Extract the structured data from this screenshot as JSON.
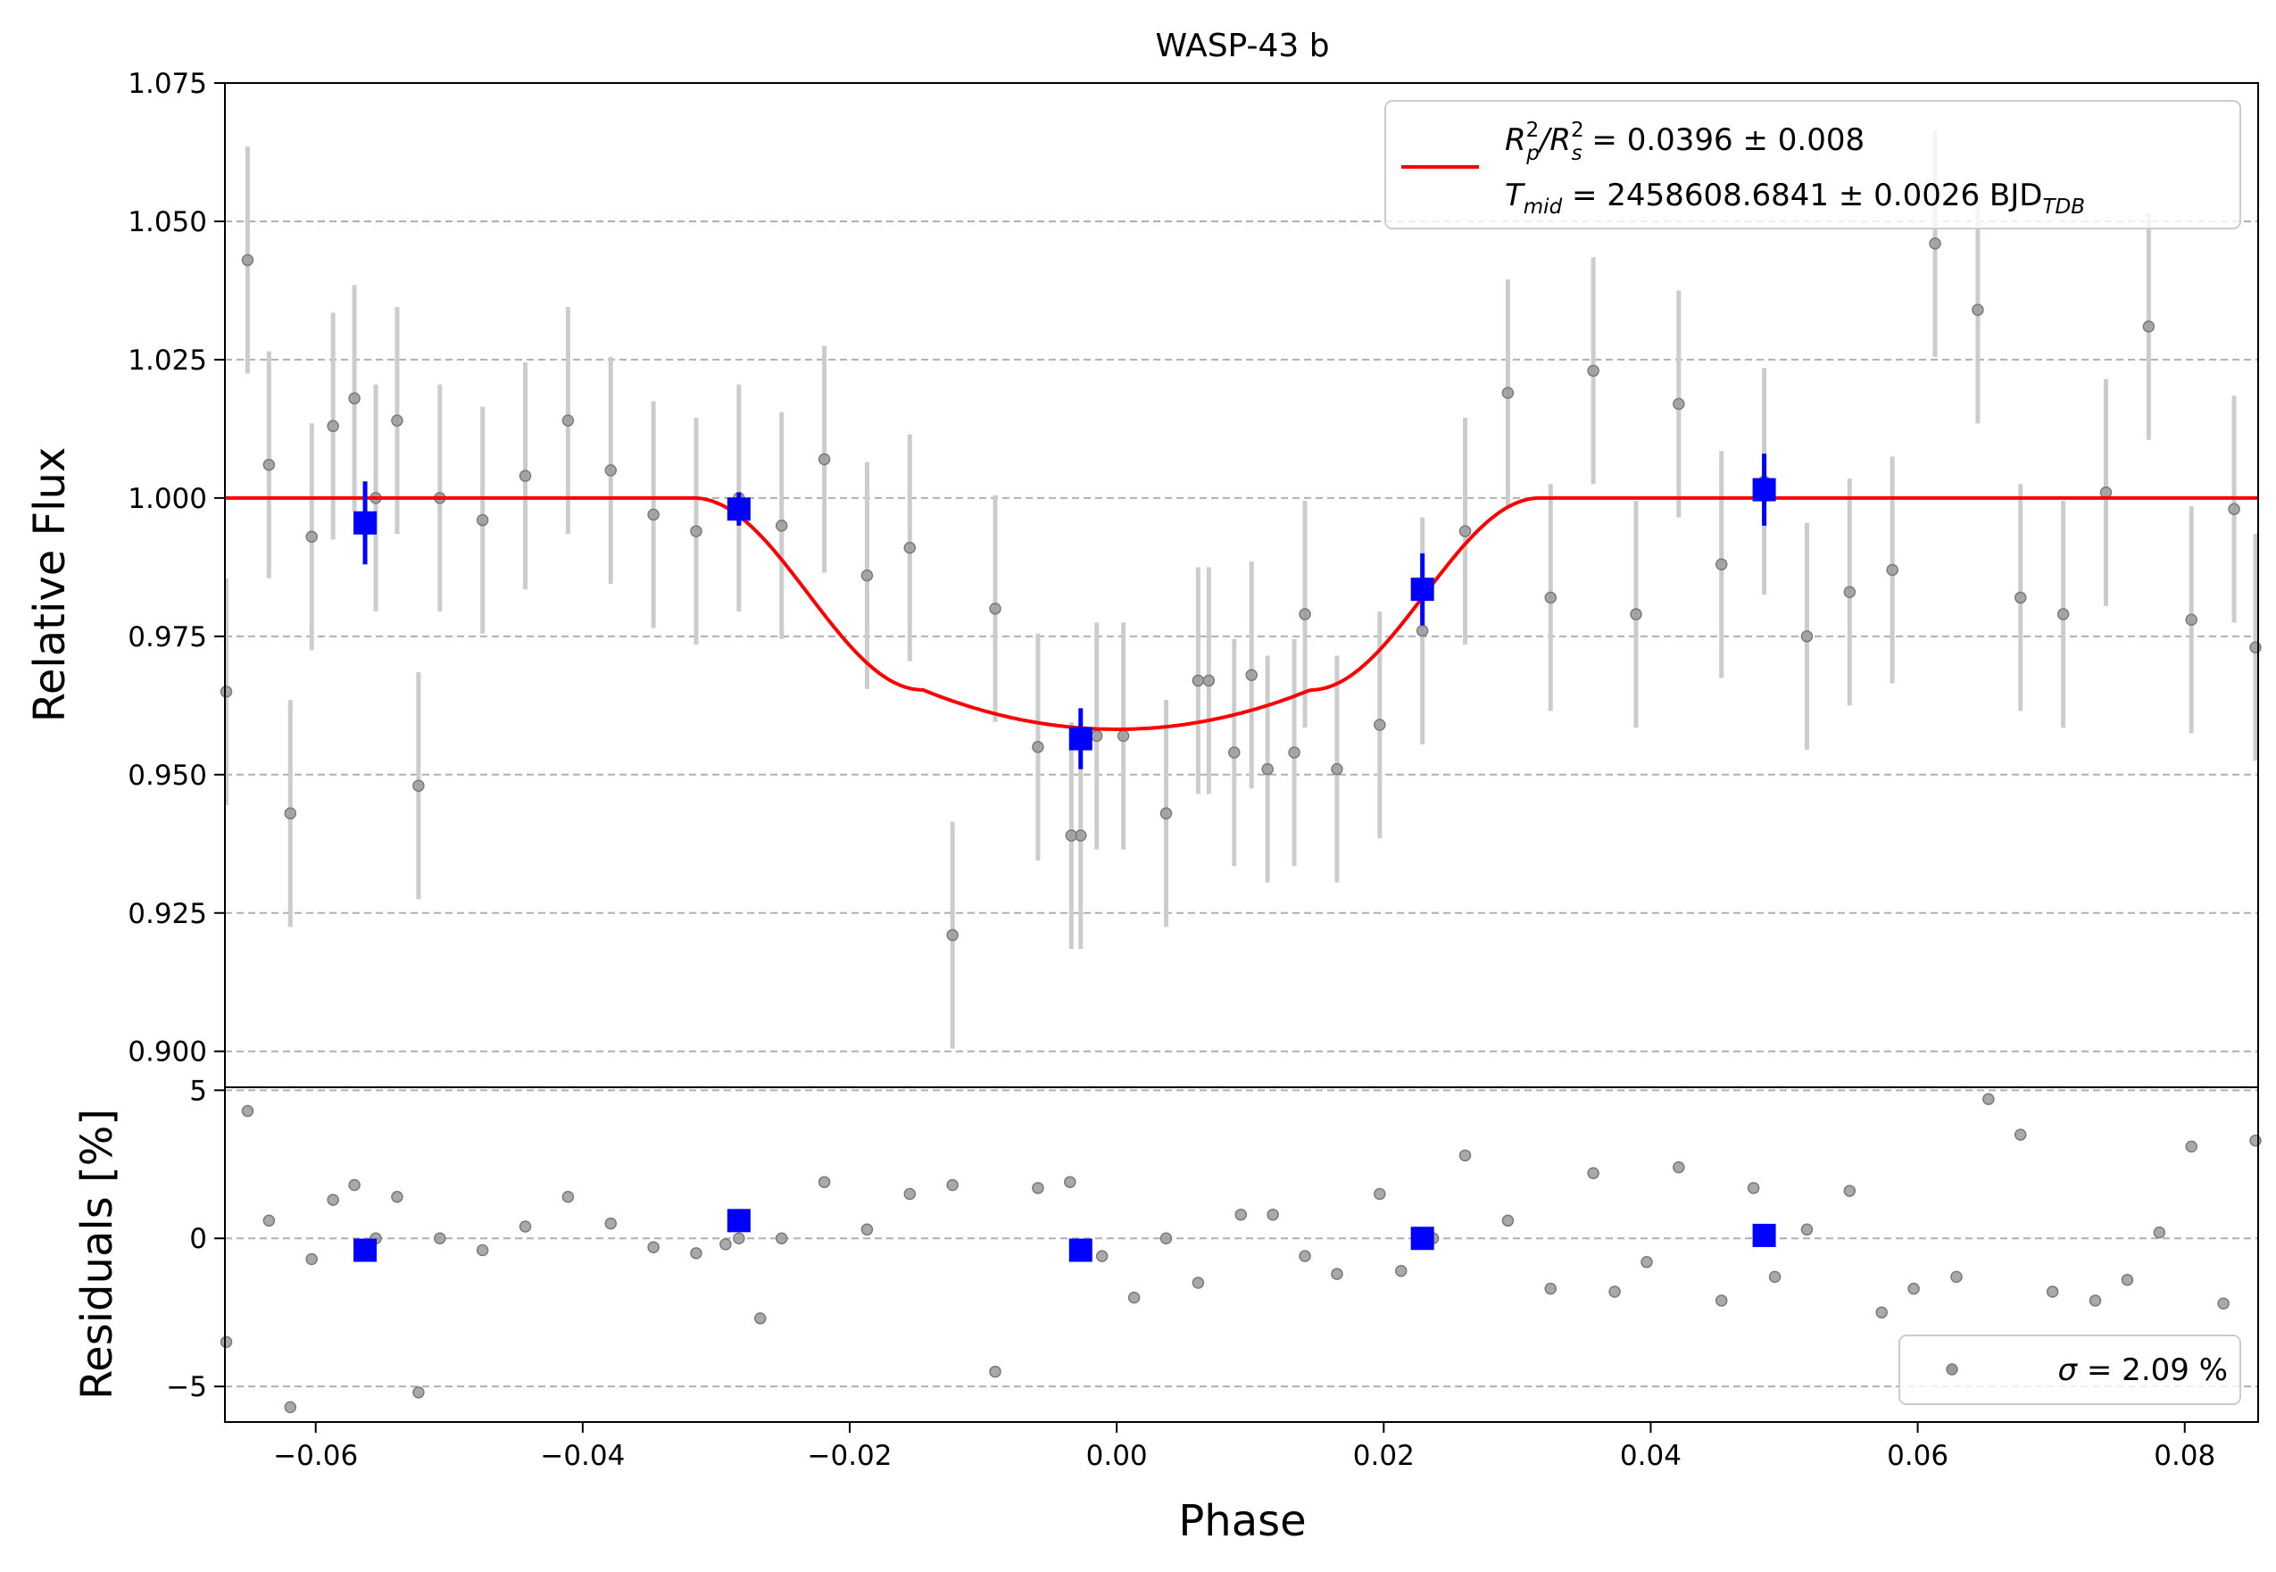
{
  "chart_data": {
    "type": "scatter",
    "title": "WASP-43 b",
    "xlabel": "Phase",
    "xlim": [
      -0.0668,
      0.0855
    ],
    "x_ticks": [
      -0.06,
      -0.04,
      -0.02,
      0.0,
      0.02,
      0.04,
      0.06,
      0.08
    ],
    "x_tick_labels": [
      "−0.06",
      "−0.04",
      "−0.02",
      "0.00",
      "0.02",
      "0.04",
      "0.06",
      "0.08"
    ],
    "top_panel": {
      "ylabel": "Relative Flux",
      "ylim": [
        0.8935,
        1.075
      ],
      "y_ticks": [
        0.9,
        0.925,
        0.95,
        0.975,
        1.0,
        1.025,
        1.05,
        1.075
      ],
      "y_tick_labels": [
        "0.900",
        "0.925",
        "0.950",
        "0.975",
        "1.000",
        "1.025",
        "1.050",
        "1.075"
      ],
      "grid": "horizontal-dashed",
      "legend_position": "top-right",
      "legend": {
        "line1": {
          "sym": "R",
          "sup1": "2",
          "sub1": "p",
          "slash": "/R",
          "sup2": "2",
          "sub2": "s",
          "rest": " = 0.0396 ± 0.008"
        },
        "line2": {
          "sym": "T",
          "sub": "mid",
          "rest": " = 2458608.6841 ± 0.0026 BJD",
          "unit_sub": "TDB"
        }
      },
      "raw_data": {
        "error": 0.0205,
        "x": [
          -0.0667,
          -0.0651,
          -0.0635,
          -0.0619,
          -0.0603,
          -0.0587,
          -0.0571,
          -0.0555,
          -0.0539,
          -0.0523,
          -0.0507,
          -0.0475,
          -0.0443,
          -0.0411,
          -0.0379,
          -0.0347,
          -0.0315,
          -0.0283,
          -0.0251,
          -0.0219,
          -0.0187,
          -0.0155,
          -0.0123,
          -0.0091,
          -0.0059,
          -0.0027,
          0.0005,
          0.0037,
          0.0069,
          0.0101,
          0.0133,
          0.0165,
          0.0197,
          0.0229,
          0.0261,
          0.0293,
          0.0325,
          0.0357,
          0.0389,
          0.0421,
          0.0453,
          0.0485,
          0.0517,
          0.0549,
          0.0581,
          0.0613,
          0.0645,
          0.0677,
          0.0709,
          0.0741,
          0.0773,
          0.0805,
          0.0837,
          0.0853,
          0.0061,
          0.0088,
          0.0113,
          0.0141,
          -0.0034,
          -0.0015
        ],
        "y": [
          0.965,
          1.043,
          1.006,
          0.943,
          0.993,
          1.013,
          1.018,
          1.0,
          1.014,
          0.948,
          1.0,
          0.996,
          1.004,
          1.014,
          1.005,
          0.997,
          0.994,
          1.0,
          0.995,
          1.007,
          0.986,
          0.991,
          0.921,
          0.98,
          0.955,
          0.939,
          0.957,
          0.943,
          0.967,
          0.968,
          0.954,
          0.951,
          0.959,
          0.976,
          0.994,
          1.019,
          0.982,
          1.023,
          0.979,
          1.017,
          0.988,
          1.003,
          0.975,
          0.983,
          0.987,
          1.046,
          1.034,
          0.982,
          0.979,
          1.001,
          1.031,
          0.978,
          0.998,
          0.973,
          0.967,
          0.954,
          0.951,
          0.979,
          0.939,
          0.957
        ]
      },
      "binned_data": {
        "x": [
          -0.0563,
          -0.0283,
          -0.0027,
          0.0229,
          0.0485
        ],
        "y": [
          0.9955,
          0.998,
          0.9565,
          0.9835,
          1.0015
        ],
        "error": [
          0.0075,
          0.003,
          0.0055,
          0.0065,
          0.0065
        ]
      },
      "model": {
        "depth": 0.0418,
        "t1": 0.0317,
        "t2": 0.0145
      }
    },
    "bottom_panel": {
      "ylabel": "Residuals [%]",
      "ylim": [
        -6.2,
        5.1
      ],
      "y_ticks": [
        -5,
        0,
        5
      ],
      "y_tick_labels": [
        "−5",
        "0",
        "5"
      ],
      "grid": "horizontal-dashed",
      "legend_position": "bottom-right",
      "legend": {
        "sym": "σ",
        "rest": " = 2.09 %"
      },
      "residuals": {
        "x": [
          -0.0667,
          -0.0651,
          -0.0635,
          -0.0619,
          -0.0603,
          -0.0587,
          -0.0571,
          -0.0555,
          -0.0539,
          -0.0523,
          -0.0507,
          -0.0475,
          -0.0443,
          -0.0411,
          -0.0379,
          -0.0347,
          -0.0315,
          -0.0283,
          -0.0251,
          -0.0219,
          -0.0187,
          -0.0155,
          -0.0123,
          -0.0091,
          -0.0059,
          -0.0035,
          -0.0011,
          0.0013,
          0.0037,
          0.0061,
          0.0093,
          0.0117,
          0.0141,
          0.0165,
          0.0197,
          0.0213,
          0.0237,
          0.0261,
          0.0293,
          0.0325,
          0.0357,
          0.0373,
          0.0397,
          0.0421,
          0.0453,
          0.0477,
          0.0493,
          0.0517,
          0.0549,
          0.0573,
          0.0597,
          0.0629,
          0.0653,
          0.0677,
          0.0701,
          0.0733,
          0.0757,
          0.0781,
          0.0805,
          0.0829,
          0.0853,
          -0.0293,
          -0.0267
        ],
        "y": [
          -3.5,
          4.3,
          0.6,
          -5.7,
          -0.7,
          1.3,
          1.8,
          0.0,
          1.4,
          -5.2,
          0.0,
          -0.4,
          0.4,
          1.4,
          0.5,
          -0.3,
          -0.5,
          0.0,
          0.0,
          1.9,
          0.3,
          1.5,
          1.8,
          -4.5,
          1.7,
          1.9,
          -0.6,
          -2.0,
          0.0,
          -1.5,
          0.8,
          0.8,
          -0.6,
          -1.2,
          1.5,
          -1.1,
          0.0,
          2.8,
          0.6,
          -1.7,
          2.2,
          -1.8,
          -0.8,
          2.4,
          -2.1,
          1.7,
          -1.3,
          0.3,
          1.6,
          -2.5,
          -1.7,
          -1.3,
          4.7,
          3.5,
          -1.8,
          -2.1,
          -1.4,
          0.2,
          3.1,
          -2.2,
          3.3,
          -0.2,
          -2.7
        ]
      },
      "binned": {
        "x": [
          -0.0563,
          -0.0283,
          -0.0027,
          0.0229,
          0.0485
        ],
        "y": [
          -0.4,
          0.6,
          -0.4,
          0.0,
          0.1
        ]
      }
    },
    "colors": {
      "raw": "#9a9a9a",
      "errorbar": "#cccccc",
      "binned": "#0000ff",
      "model": "#ff0000",
      "grid": "#b0b0b0"
    }
  }
}
